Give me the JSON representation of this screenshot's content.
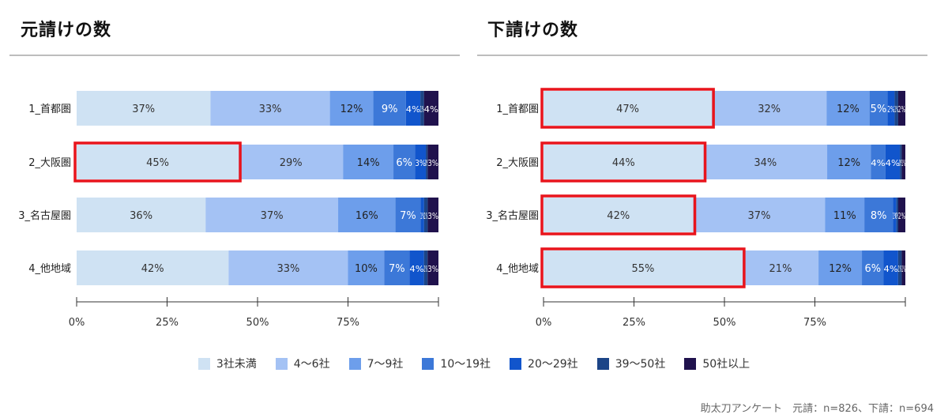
{
  "footer": {
    "source": "助太刀アンケート　元請：n=826、下請：n=694"
  },
  "legend": [
    {
      "label": "3社未満",
      "color": "#cfe2f3"
    },
    {
      "label": "4〜6社",
      "color": "#a4c2f4"
    },
    {
      "label": "7〜9社",
      "color": "#6d9eeb"
    },
    {
      "label": "10〜19社",
      "color": "#3c78d8"
    },
    {
      "label": "20〜29社",
      "color": "#1155cc"
    },
    {
      "label": "39〜50社",
      "color": "#1c4587"
    },
    {
      "label": "50社以上",
      "color": "#20124d"
    }
  ],
  "highlight_color": "#e8141c",
  "chart_data": [
    {
      "type": "bar",
      "orientation": "horizontal",
      "stacked": true,
      "title": "元請けの数",
      "categories": [
        "1_首都圏",
        "2_大阪圏",
        "3_名古屋圏",
        "4_他地域"
      ],
      "x_ticks": [
        "0%",
        "25%",
        "50%",
        "75%"
      ],
      "xlim": [
        0,
        100
      ],
      "series": [
        {
          "name": "3社未満",
          "values": [
            37,
            45,
            36,
            42
          ],
          "labels": [
            "37%",
            "45%",
            "36%",
            "42%"
          ]
        },
        {
          "name": "4〜6社",
          "values": [
            33,
            29,
            37,
            33
          ],
          "labels": [
            "33%",
            "29%",
            "37%",
            "33%"
          ]
        },
        {
          "name": "7〜9社",
          "values": [
            12,
            14,
            16,
            10
          ],
          "labels": [
            "12%",
            "14%",
            "16%",
            "10%"
          ]
        },
        {
          "name": "10〜19社",
          "values": [
            9,
            6,
            7,
            7
          ],
          "labels": [
            "9%",
            "6%",
            "7%",
            "7%"
          ]
        },
        {
          "name": "20〜29社",
          "values": [
            4,
            3,
            1,
            4
          ],
          "labels": [
            "4%",
            "3%",
            "1%",
            "4%"
          ]
        },
        {
          "name": "39〜50社",
          "values": [
            1,
            0.5,
            1,
            1
          ],
          "labels": [
            "1%",
            "0%",
            "1%",
            "1%"
          ]
        },
        {
          "name": "50社以上",
          "values": [
            4,
            3,
            3,
            3
          ],
          "labels": [
            "4%",
            "3%",
            "3%",
            "3%"
          ]
        }
      ],
      "highlight": [
        1
      ]
    },
    {
      "type": "bar",
      "orientation": "horizontal",
      "stacked": true,
      "title": "下請けの数",
      "categories": [
        "1_首都圏",
        "2_大阪圏",
        "3_名古屋圏",
        "4_他地域"
      ],
      "x_ticks": [
        "0%",
        "25%",
        "50%",
        "75%"
      ],
      "xlim": [
        0,
        100
      ],
      "series": [
        {
          "name": "3社未満",
          "values": [
            47,
            44,
            42,
            55
          ],
          "labels": [
            "47%",
            "44%",
            "42%",
            "55%"
          ]
        },
        {
          "name": "4〜6社",
          "values": [
            32,
            34,
            37,
            21
          ],
          "labels": [
            "32%",
            "34%",
            "37%",
            "21%"
          ]
        },
        {
          "name": "7〜9社",
          "values": [
            12,
            12,
            11,
            12
          ],
          "labels": [
            "12%",
            "12%",
            "11%",
            "12%"
          ]
        },
        {
          "name": "10〜19社",
          "values": [
            5,
            4,
            8,
            6
          ],
          "labels": [
            "5%",
            "4%",
            "8%",
            "6%"
          ]
        },
        {
          "name": "20〜29社",
          "values": [
            2,
            4,
            1,
            4
          ],
          "labels": [
            "2%",
            "4%",
            "1%",
            "4%"
          ]
        },
        {
          "name": "39〜50社",
          "values": [
            1,
            0.5,
            0.5,
            1
          ],
          "labels": [
            "1%",
            "0%",
            "0%",
            "1%"
          ]
        },
        {
          "name": "50社以上",
          "values": [
            2,
            1,
            2,
            1
          ],
          "labels": [
            "2%",
            "1%",
            "2%",
            "1%"
          ]
        }
      ],
      "highlight": [
        0,
        1,
        2,
        3
      ]
    }
  ]
}
